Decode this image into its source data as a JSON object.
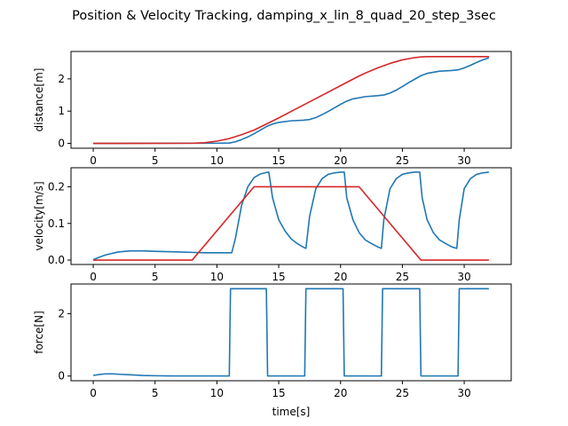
{
  "chart_data": {
    "type": "line",
    "title": "Position & Velocity Tracking, damping_x_lin_8_quad_20_step_3sec",
    "xlabel": "time[s]",
    "colors": {
      "blue": "#1f77b4",
      "red": "#d62728"
    },
    "subplots": [
      {
        "ylabel": "distance[m]",
        "xlim": [
          -1.8,
          33.8
        ],
        "ylim": [
          -0.15,
          2.85
        ],
        "xticks": [
          0,
          5,
          10,
          15,
          20,
          25,
          30
        ],
        "yticks": [
          0,
          1,
          2
        ],
        "series": [
          {
            "color": "#1f77b4",
            "x": [
              0,
              2,
              4,
              6,
              8,
              9,
              10,
              11,
              11.5,
              12,
              12.5,
              13,
              13.5,
              14,
              14.5,
              15,
              16,
              17,
              17.5,
              18,
              18.5,
              19,
              19.5,
              20,
              20.5,
              21,
              22,
              23,
              23.5,
              24,
              24.5,
              25,
              25.5,
              26,
              26.5,
              27,
              28,
              29,
              29.5,
              30,
              30.5,
              31,
              31.5,
              32
            ],
            "y": [
              0,
              0,
              0.005,
              0.005,
              0.005,
              0.005,
              0.005,
              0.01,
              0.05,
              0.12,
              0.2,
              0.3,
              0.41,
              0.52,
              0.6,
              0.65,
              0.7,
              0.72,
              0.74,
              0.8,
              0.89,
              0.99,
              1.1,
              1.21,
              1.31,
              1.38,
              1.45,
              1.48,
              1.5,
              1.56,
              1.65,
              1.76,
              1.88,
              1.99,
              2.1,
              2.17,
              2.24,
              2.26,
              2.28,
              2.34,
              2.42,
              2.51,
              2.59,
              2.65
            ]
          },
          {
            "color": "#d62728",
            "x": [
              0,
              4,
              8,
              9,
              10,
              11,
              12,
              13,
              14,
              15,
              16,
              17,
              18,
              19,
              20,
              21,
              21.5,
              22,
              23,
              24,
              25,
              26,
              26.5,
              27,
              28,
              29,
              30,
              31,
              32
            ],
            "y": [
              0,
              0,
              0.005,
              0.02,
              0.07,
              0.15,
              0.27,
              0.41,
              0.6,
              0.79,
              0.99,
              1.19,
              1.39,
              1.59,
              1.79,
              1.99,
              2.09,
              2.18,
              2.34,
              2.48,
              2.59,
              2.66,
              2.68,
              2.69,
              2.69,
              2.69,
              2.69,
              2.69,
              2.69
            ]
          }
        ]
      },
      {
        "ylabel": "velocity[m/s]",
        "xlim": [
          -1.8,
          33.8
        ],
        "ylim": [
          -0.012,
          0.252
        ],
        "xticks": [
          0,
          5,
          10,
          15,
          20,
          25,
          30
        ],
        "yticks": [
          0.0,
          0.1,
          0.2
        ],
        "ytick_labels": [
          "0.0",
          "0.1",
          "0.2"
        ],
        "series": [
          {
            "color": "#1f77b4",
            "x": [
              0,
              0.5,
              1,
              1.5,
              2,
              3,
              4,
              5,
              6,
              7,
              8,
              9,
              10,
              11,
              11.2,
              11.5,
              12,
              12.5,
              13,
              13.5,
              14,
              14.2,
              14.5,
              15,
              15.5,
              16,
              16.5,
              17,
              17.2,
              17.5,
              18,
              18.5,
              19,
              19.5,
              20,
              20.3,
              20.5,
              21,
              21.5,
              22,
              22.5,
              23,
              23.3,
              23.5,
              24,
              24.5,
              25,
              25.5,
              26,
              26.4,
              26.6,
              27,
              27.5,
              28,
              28.5,
              29,
              29.4,
              29.6,
              30,
              30.5,
              31,
              31.5,
              32
            ],
            "y": [
              0.001,
              0.008,
              0.014,
              0.018,
              0.022,
              0.025,
              0.025,
              0.024,
              0.023,
              0.022,
              0.021,
              0.02,
              0.02,
              0.02,
              0.02,
              0.06,
              0.15,
              0.2,
              0.225,
              0.235,
              0.239,
              0.24,
              0.17,
              0.11,
              0.08,
              0.058,
              0.045,
              0.035,
              0.032,
              0.12,
              0.195,
              0.222,
              0.234,
              0.238,
              0.24,
              0.24,
              0.17,
              0.11,
              0.075,
              0.055,
              0.045,
              0.036,
              0.032,
              0.11,
              0.195,
              0.222,
              0.234,
              0.238,
              0.24,
              0.24,
              0.17,
              0.11,
              0.075,
              0.055,
              0.045,
              0.036,
              0.032,
              0.11,
              0.195,
              0.222,
              0.234,
              0.238,
              0.24
            ]
          },
          {
            "color": "#d62728",
            "x": [
              0,
              8,
              13,
              21.5,
              26.5,
              32
            ],
            "y": [
              0,
              0,
              0.2,
              0.2,
              0,
              0
            ]
          }
        ]
      },
      {
        "ylabel": "force[N]",
        "xlim": [
          -1.8,
          33.8
        ],
        "ylim": [
          -0.15,
          2.95
        ],
        "xticks": [
          0,
          5,
          10,
          15,
          20,
          25,
          30
        ],
        "yticks": [
          0,
          2
        ],
        "series": [
          {
            "color": "#1f77b4",
            "x": [
              0,
              0.5,
              1,
              1.5,
              2,
              3,
              4,
              5,
              6,
              7,
              8,
              9,
              10,
              11,
              11.1,
              14,
              14.1,
              17.1,
              17.2,
              20.2,
              20.3,
              23.3,
              23.4,
              26.4,
              26.5,
              29.5,
              29.6,
              32
            ],
            "y": [
              0.02,
              0.05,
              0.07,
              0.07,
              0.06,
              0.04,
              0.02,
              0.01,
              0.005,
              0.003,
              0.003,
              0.003,
              0.003,
              0.003,
              2.8,
              2.8,
              0.003,
              0.003,
              2.8,
              2.8,
              0.003,
              0.003,
              2.8,
              2.8,
              0.003,
              0.003,
              2.8,
              2.8
            ]
          }
        ]
      }
    ]
  }
}
